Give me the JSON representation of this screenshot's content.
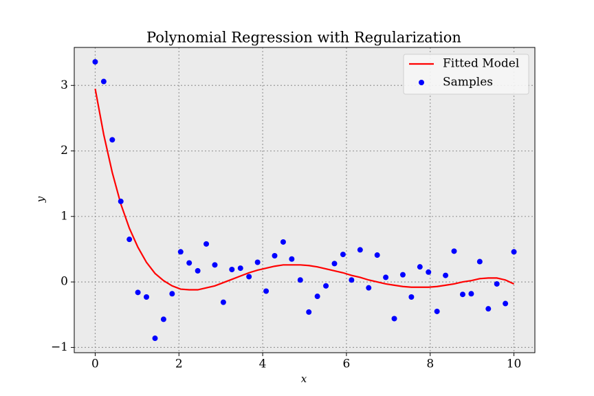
{
  "chart_data": {
    "type": "scatter",
    "title": "Polynomial Regression with Regularization",
    "xlabel": "x",
    "ylabel": "y",
    "x": [
      0,
      0.204,
      0.408,
      0.612,
      0.816,
      1.02,
      1.224,
      1.429,
      1.633,
      1.837,
      2.041,
      2.245,
      2.449,
      2.653,
      2.857,
      3.061,
      3.265,
      3.469,
      3.673,
      3.878,
      4.082,
      4.286,
      4.49,
      4.694,
      4.898,
      5.102,
      5.306,
      5.51,
      5.714,
      5.918,
      6.122,
      6.327,
      6.531,
      6.735,
      6.939,
      7.143,
      7.347,
      7.551,
      7.755,
      7.959,
      8.163,
      8.367,
      8.571,
      8.776,
      8.98,
      9.184,
      9.388,
      9.592,
      9.796,
      10
    ],
    "series": [
      {
        "name": "Fitted Model",
        "type": "line",
        "color": "#ff0000",
        "values": [
          2.95,
          2.25,
          1.67,
          1.19,
          0.82,
          0.53,
          0.3,
          0.13,
          0.02,
          -0.06,
          -0.11,
          -0.12,
          -0.12,
          -0.09,
          -0.06,
          -0.01,
          0.04,
          0.09,
          0.14,
          0.18,
          0.21,
          0.24,
          0.26,
          0.26,
          0.26,
          0.25,
          0.23,
          0.2,
          0.17,
          0.14,
          0.1,
          0.07,
          0.03,
          0.0,
          -0.03,
          -0.05,
          -0.07,
          -0.08,
          -0.08,
          -0.08,
          -0.07,
          -0.05,
          -0.03,
          0.0,
          0.02,
          0.05,
          0.06,
          0.06,
          0.03,
          -0.03
        ]
      },
      {
        "name": "Samples",
        "type": "scatter",
        "color": "#0000ff",
        "values": [
          3.36,
          3.06,
          2.17,
          1.23,
          0.65,
          -0.16,
          -0.23,
          -0.86,
          -0.57,
          -0.18,
          0.46,
          0.29,
          0.17,
          0.58,
          0.26,
          -0.31,
          0.19,
          0.21,
          0.08,
          0.3,
          -0.14,
          0.4,
          0.61,
          0.35,
          0.03,
          -0.46,
          -0.22,
          -0.06,
          0.28,
          0.42,
          0.03,
          0.49,
          -0.09,
          0.41,
          0.07,
          -0.56,
          0.11,
          -0.23,
          0.23,
          0.15,
          -0.45,
          0.1,
          0.47,
          -0.19,
          -0.18,
          0.31,
          -0.41,
          -0.03,
          -0.33,
          0.46
        ]
      }
    ],
    "xlim": [
      -0.5,
      10.5
    ],
    "ylim": [
      -1.08,
      3.58
    ],
    "xticks": [
      0,
      2,
      4,
      6,
      8,
      10
    ],
    "yticks": [
      {
        "value": -1,
        "label": "−1"
      },
      0,
      1,
      2,
      3
    ],
    "grid": true,
    "legend": "upper right"
  }
}
